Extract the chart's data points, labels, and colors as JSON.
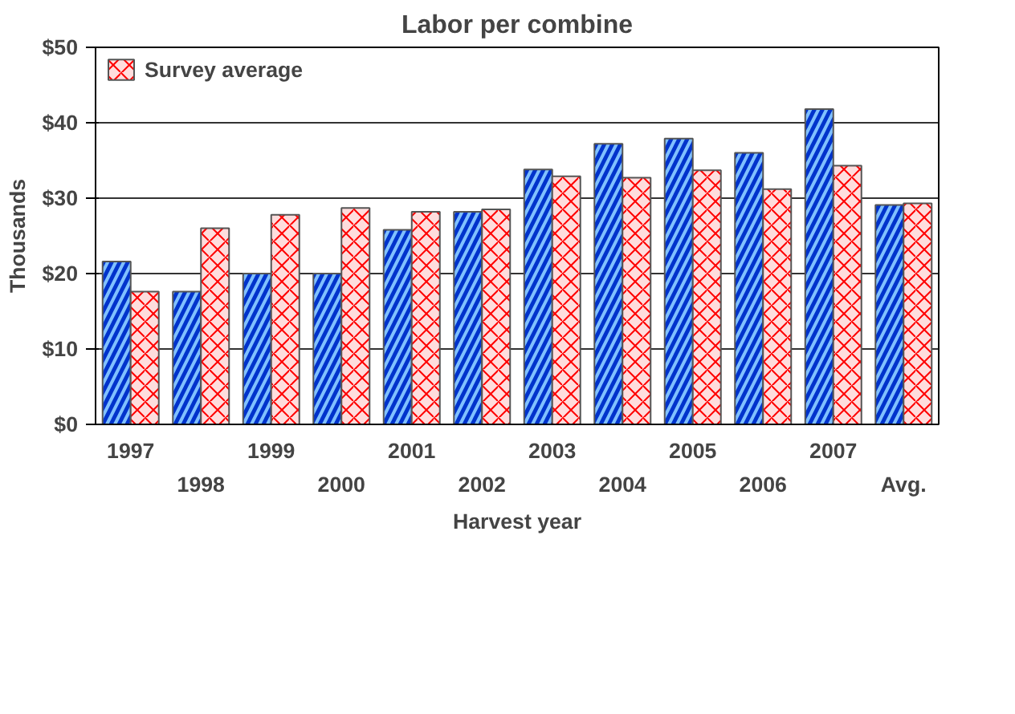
{
  "chart_data": {
    "type": "bar",
    "title": "Labor per combine",
    "xlabel": "Harvest year",
    "ylabel": "Thousands",
    "categories": [
      "1997",
      "1998",
      "1999",
      "2000",
      "2001",
      "2002",
      "2003",
      "2004",
      "2005",
      "2006",
      "2007",
      "Avg."
    ],
    "series": [
      {
        "color": "#0033cc",
        "values": [
          21.6,
          17.6,
          20.0,
          20.0,
          25.8,
          28.2,
          33.8,
          37.2,
          37.9,
          36.0,
          41.8,
          29.1
        ]
      },
      {
        "name": "Survey average",
        "color": "#ffdddd",
        "values": [
          17.6,
          26.0,
          27.8,
          28.7,
          28.2,
          28.5,
          32.9,
          32.7,
          33.7,
          31.2,
          34.3,
          29.3
        ]
      }
    ],
    "ylim": [
      0,
      50
    ],
    "yticks": [
      {
        "value": 0,
        "label": "$0"
      },
      {
        "value": 10,
        "label": "$10"
      },
      {
        "value": 20,
        "label": "$20"
      },
      {
        "value": 30,
        "label": "$30"
      },
      {
        "value": 40,
        "label": "$40"
      },
      {
        "value": 50,
        "label": "$50"
      }
    ],
    "grid": "y",
    "legend": "top left"
  }
}
